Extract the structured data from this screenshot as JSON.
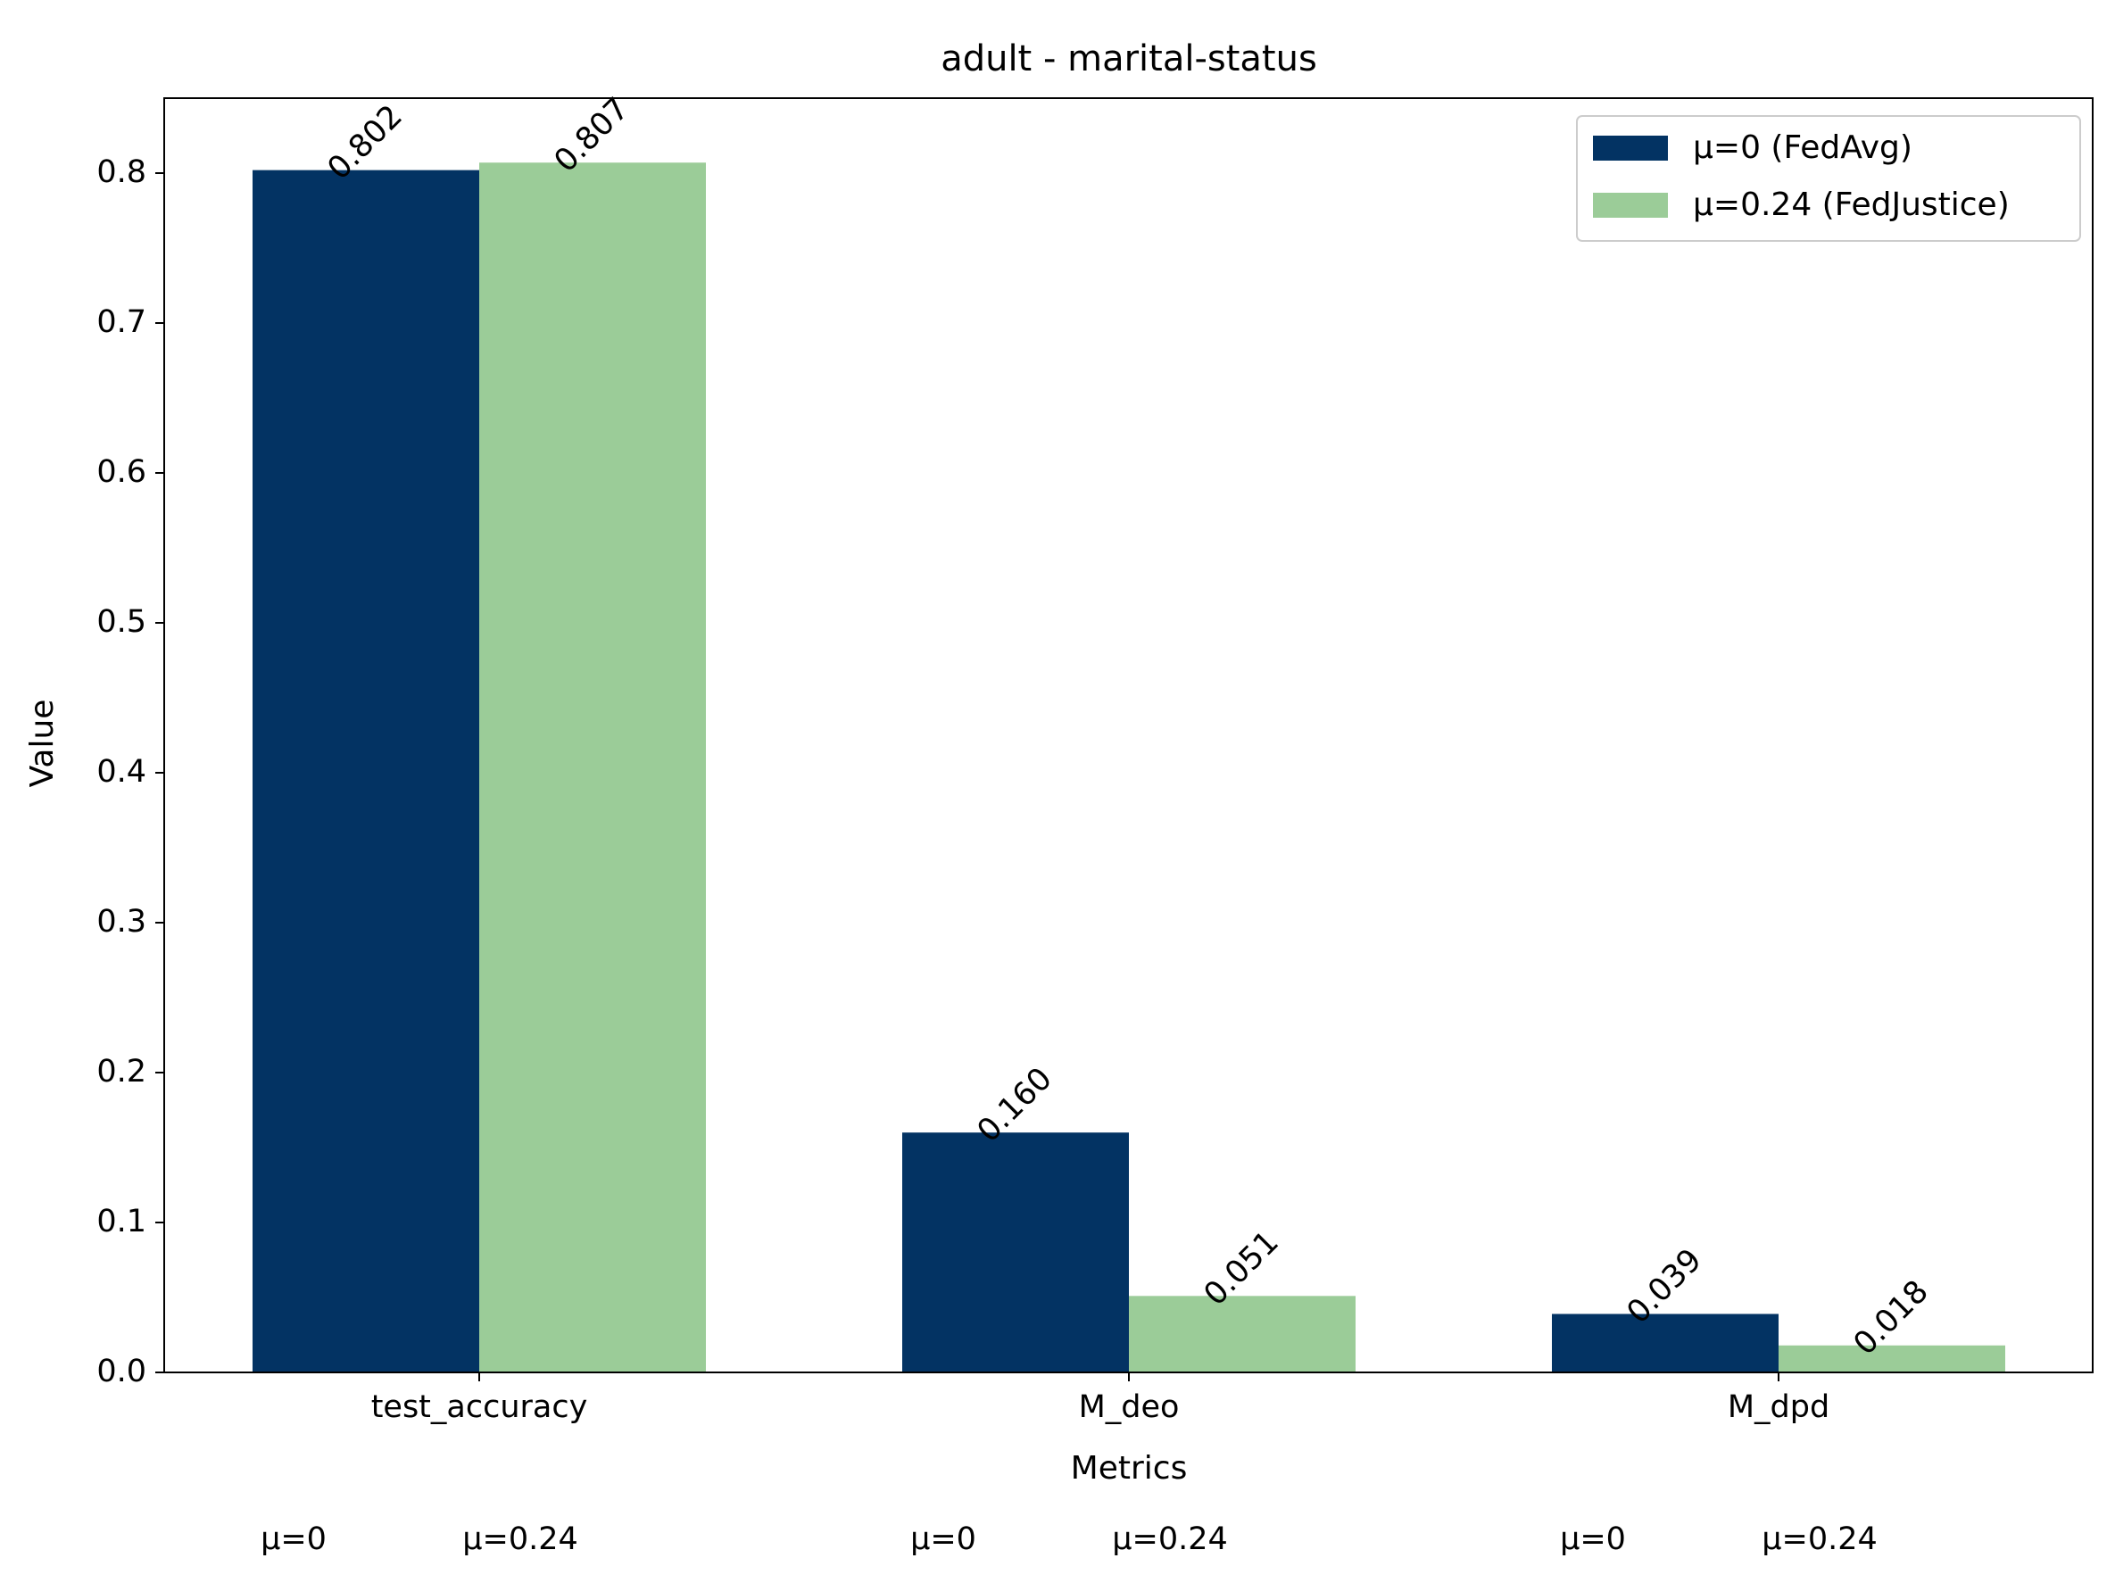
{
  "chart_data": {
    "type": "bar",
    "title": "adult - marital-status",
    "xlabel": "Metrics",
    "ylabel": "Value",
    "categories": [
      "test_accuracy",
      "M_deo",
      "M_dpd"
    ],
    "series": [
      {
        "name": "μ=0 (FedAvg)",
        "color": "#033363",
        "values": [
          0.802,
          0.16,
          0.039
        ],
        "value_labels": [
          "0.802",
          "0.160",
          "0.039"
        ],
        "sub_label": "μ=0"
      },
      {
        "name": "μ=0.24 (FedJustice)",
        "color": "#9bcc98",
        "values": [
          0.807,
          0.051,
          0.018
        ],
        "value_labels": [
          "0.807",
          "0.051",
          "0.018"
        ],
        "sub_label": "μ=0.24"
      }
    ],
    "ylim": [
      0,
      0.85
    ],
    "yticks": [
      0.0,
      0.1,
      0.2,
      0.3,
      0.4,
      0.5,
      0.6,
      0.7,
      0.8
    ],
    "ytick_labels": [
      "0.0",
      "0.1",
      "0.2",
      "0.3",
      "0.4",
      "0.5",
      "0.6",
      "0.7",
      "0.8"
    ],
    "grid": false,
    "legend_position": "top-right"
  }
}
